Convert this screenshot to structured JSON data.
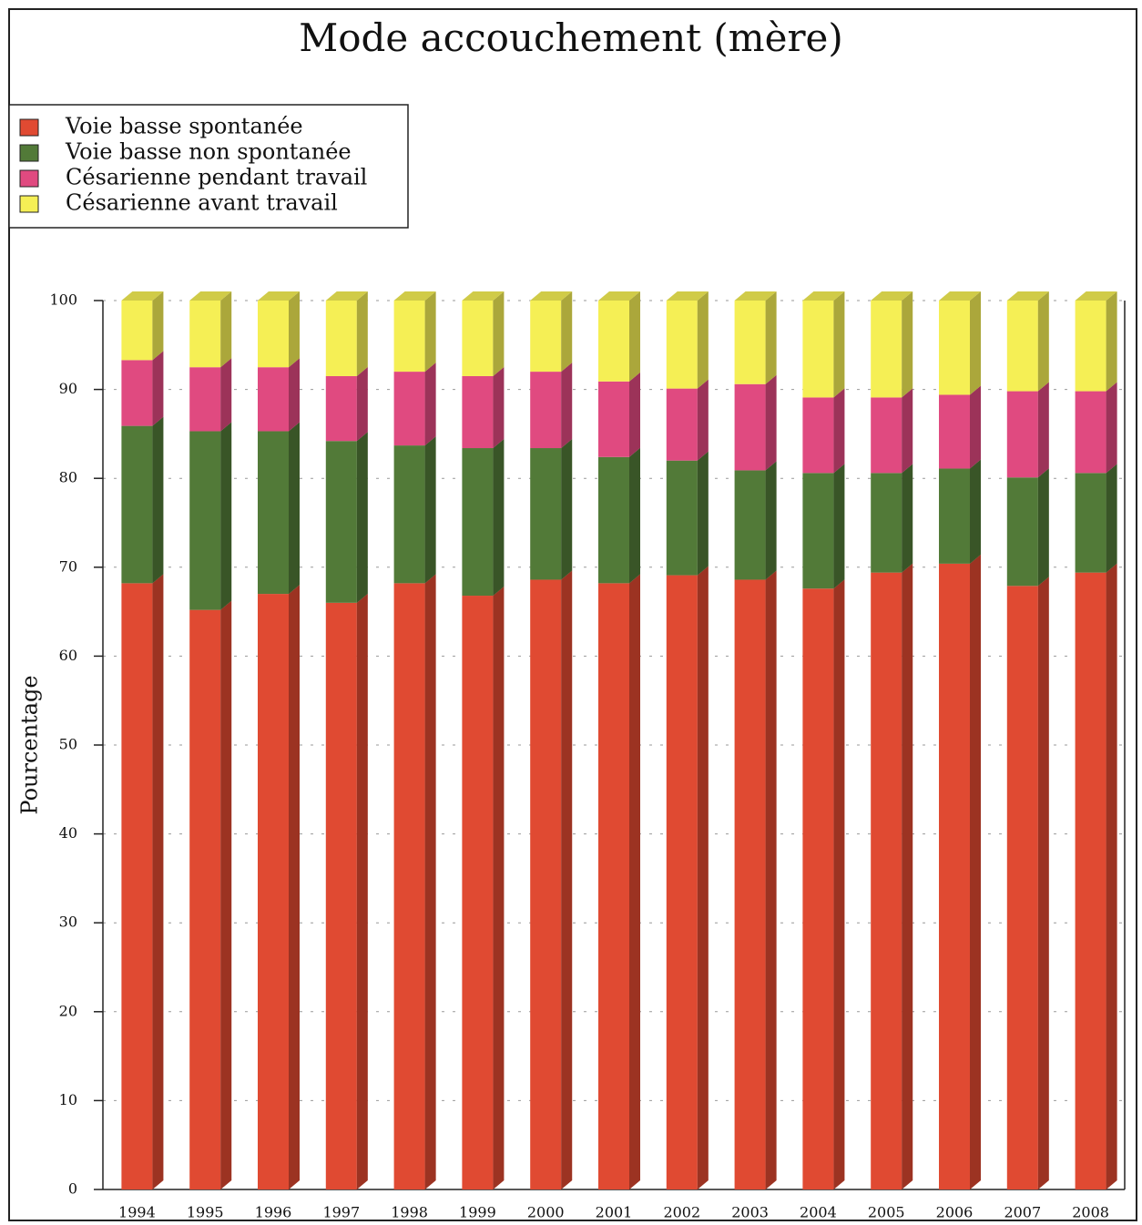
{
  "chart_data": {
    "type": "bar",
    "stacked": true,
    "title": "Mode accouchement (mère)",
    "ylabel": "Pourcentage",
    "categories": [
      "1994",
      "1995",
      "1996",
      "1997",
      "1998",
      "1999",
      "2000",
      "2001",
      "2002",
      "2003",
      "2004",
      "2005",
      "2006",
      "2007",
      "2008"
    ],
    "series": [
      {
        "name": "Voie basse spontanée",
        "color": "#e04a32",
        "values": [
          68.2,
          65.2,
          67.0,
          66.0,
          68.2,
          66.8,
          68.6,
          68.2,
          69.1,
          68.6,
          67.6,
          69.4,
          70.4,
          67.9,
          69.4
        ]
      },
      {
        "name": "Voie basse non spontanée",
        "color": "#527a38",
        "values": [
          17.7,
          20.1,
          18.3,
          18.2,
          15.5,
          16.6,
          14.8,
          14.2,
          12.9,
          12.3,
          13.0,
          11.2,
          10.7,
          12.2,
          11.2
        ]
      },
      {
        "name": "Césarienne pendant travail",
        "color": "#e04a80",
        "values": [
          7.4,
          7.2,
          7.2,
          7.3,
          8.3,
          8.1,
          8.6,
          8.5,
          8.1,
          9.7,
          8.5,
          8.5,
          8.3,
          9.7,
          9.2
        ]
      },
      {
        "name": "Césarienne avant travail",
        "color": "#f5ef55",
        "values": [
          6.7,
          7.5,
          7.5,
          8.5,
          8.0,
          8.5,
          8.0,
          9.1,
          9.9,
          9.4,
          10.9,
          10.9,
          10.6,
          10.2,
          10.2
        ]
      }
    ],
    "ylim": [
      0,
      100
    ],
    "yticks": [
      0,
      10,
      20,
      30,
      40,
      50,
      60,
      70,
      80,
      90,
      100
    ],
    "grid": true,
    "legend": "upper left"
  }
}
